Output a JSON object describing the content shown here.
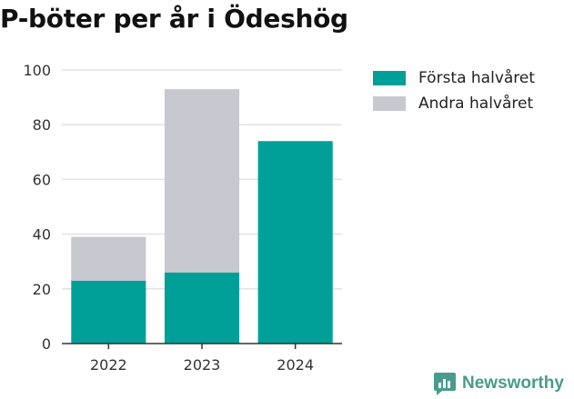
{
  "chart_data": {
    "type": "bar",
    "stacked": true,
    "title": "P-böter per år i Ödeshög",
    "categories": [
      "2022",
      "2023",
      "2024"
    ],
    "series": [
      {
        "name": "Första halvåret",
        "color": "#00a098",
        "values": [
          23,
          26,
          74
        ]
      },
      {
        "name": "Andra halvåret",
        "color": "#c8c8d0",
        "values": [
          16,
          67,
          0
        ]
      }
    ],
    "ylim": [
      0,
      100
    ],
    "yticks": [
      0,
      20,
      40,
      60,
      80,
      100
    ],
    "grid": true,
    "legend": "top-right"
  },
  "brand": {
    "name": "Newsworthy",
    "icon": "newsworthy-logo-icon",
    "color": "#4a9b8e"
  }
}
